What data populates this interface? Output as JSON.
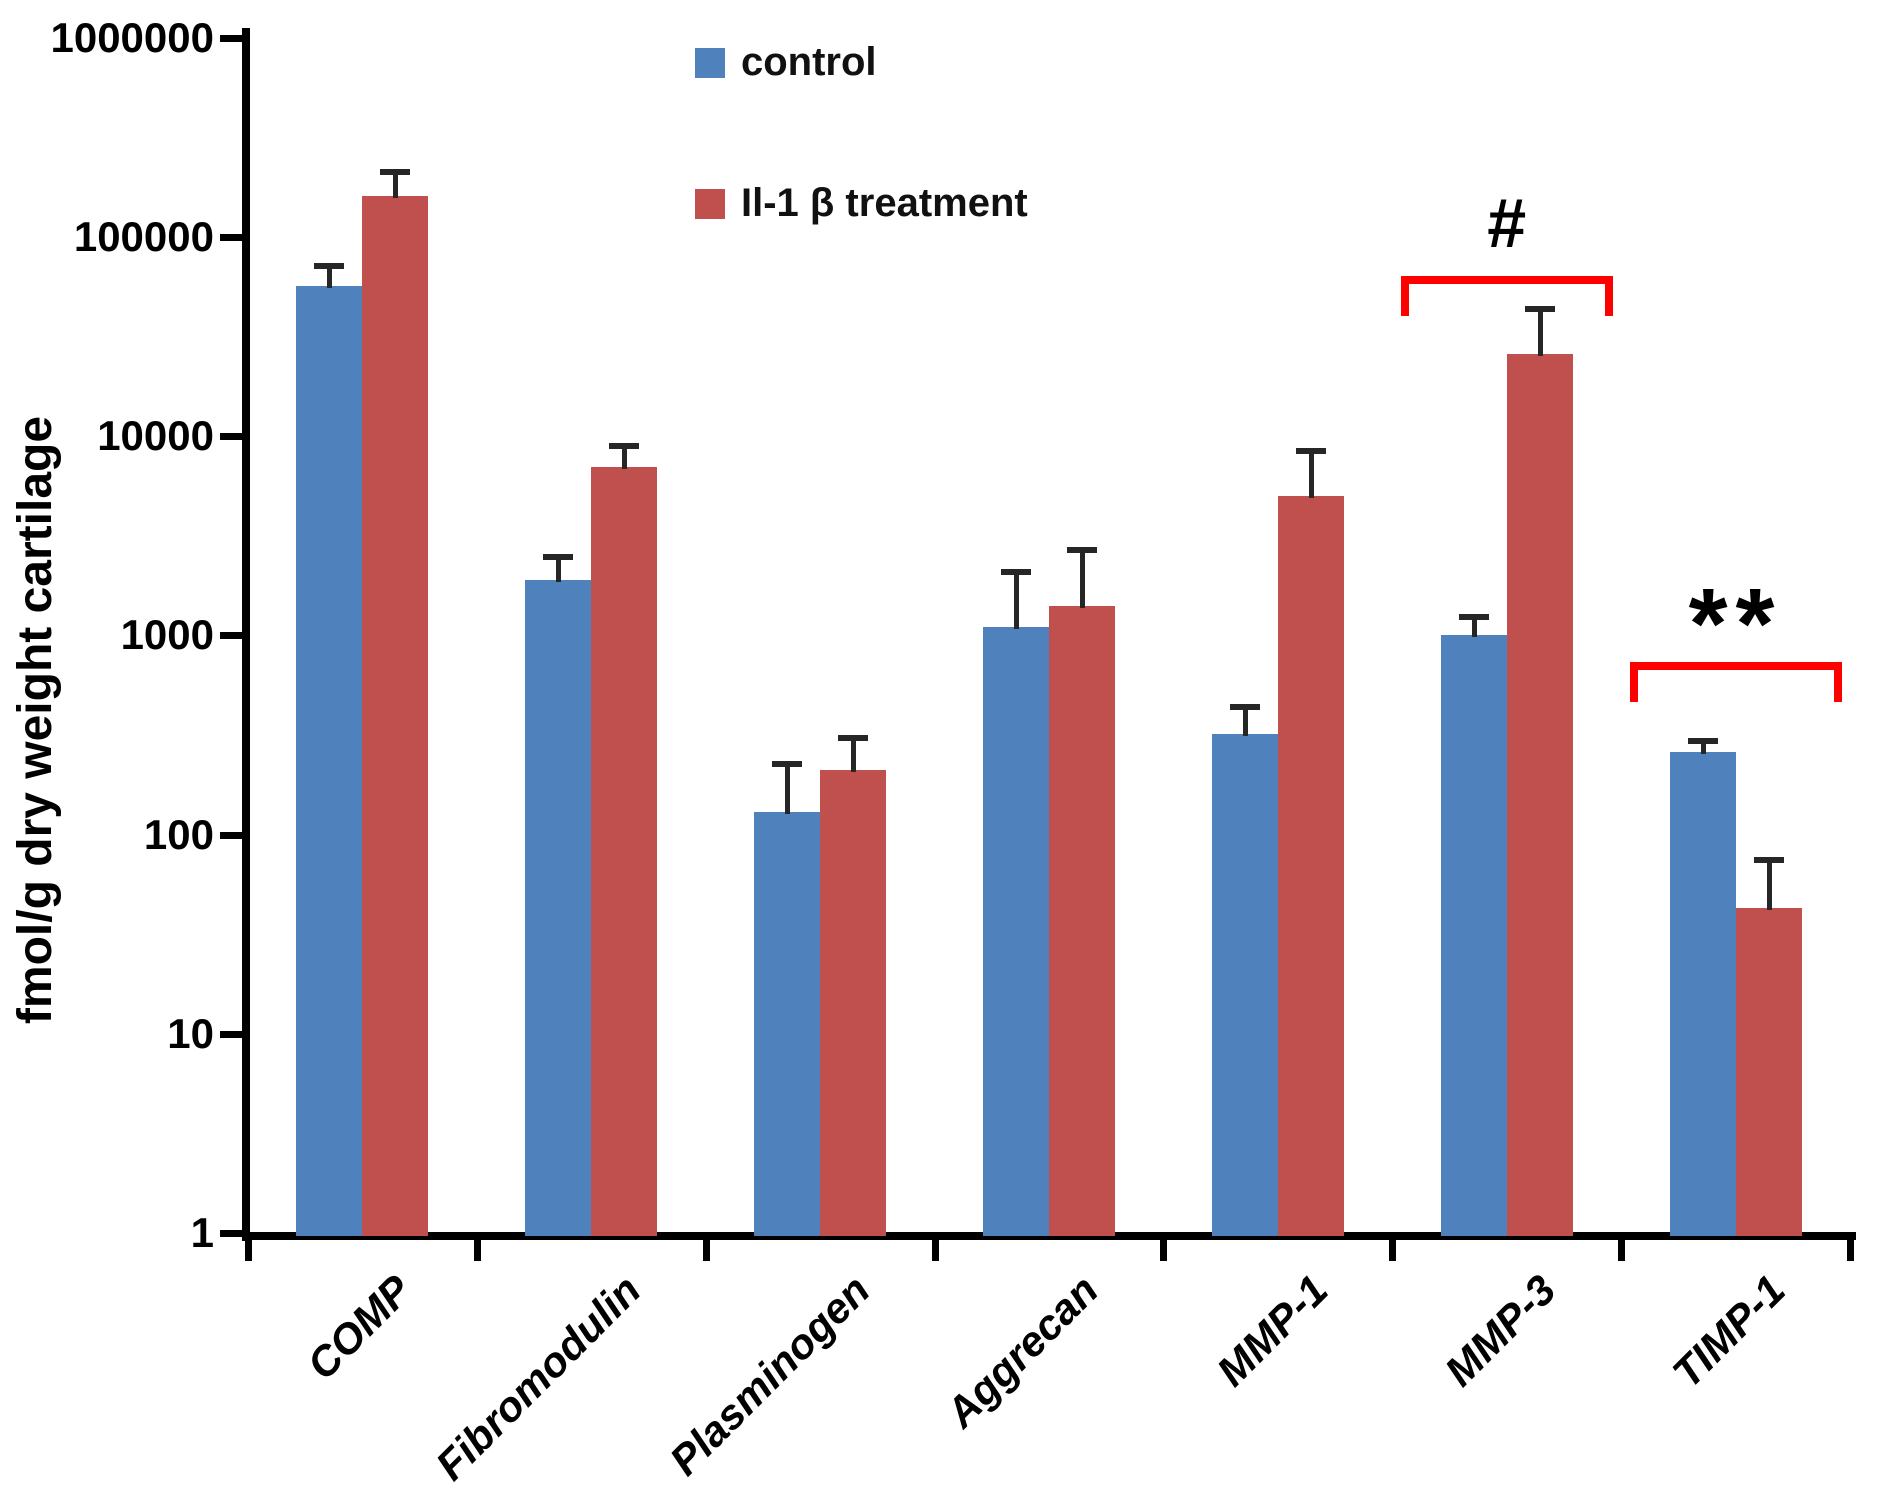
{
  "chart_data": {
    "type": "bar",
    "title": "",
    "xlabel": "",
    "ylabel": "fmol/g dry weight cartilage",
    "y_scale": "log10",
    "ylim": [
      1,
      1000000
    ],
    "y_tick_labels": [
      "1000000",
      "100000",
      "10000",
      "1000",
      "100",
      "10",
      "1"
    ],
    "grid": false,
    "legend_position": "top-center",
    "categories": [
      "COMP",
      "Fibromodulin",
      "Plasminogen",
      "Aggrecan",
      "MMP-1",
      "MMP-3",
      "TIMP-1"
    ],
    "series": [
      {
        "name": "control",
        "color": "#4F81BD",
        "values": [
          57000,
          1900,
          130,
          1100,
          320,
          1000,
          260
        ],
        "error_top": [
          72000,
          2500,
          230,
          2100,
          440,
          1250,
          300
        ]
      },
      {
        "name": "Il-1 β treatment",
        "color": "#C0504D",
        "values": [
          160000,
          7000,
          210,
          1400,
          5000,
          26000,
          43
        ],
        "error_top": [
          215000,
          9000,
          310,
          2700,
          8500,
          44000,
          75
        ]
      }
    ],
    "annotations": [
      {
        "symbol": "#",
        "category": "MMP-3",
        "line_value": 61000
      },
      {
        "symbol": "**",
        "category": "TIMP-1",
        "line_value": 700
      }
    ],
    "annotation_color": "#FF0000",
    "error_bar_color": "#262626",
    "axis_color": "#000000"
  }
}
